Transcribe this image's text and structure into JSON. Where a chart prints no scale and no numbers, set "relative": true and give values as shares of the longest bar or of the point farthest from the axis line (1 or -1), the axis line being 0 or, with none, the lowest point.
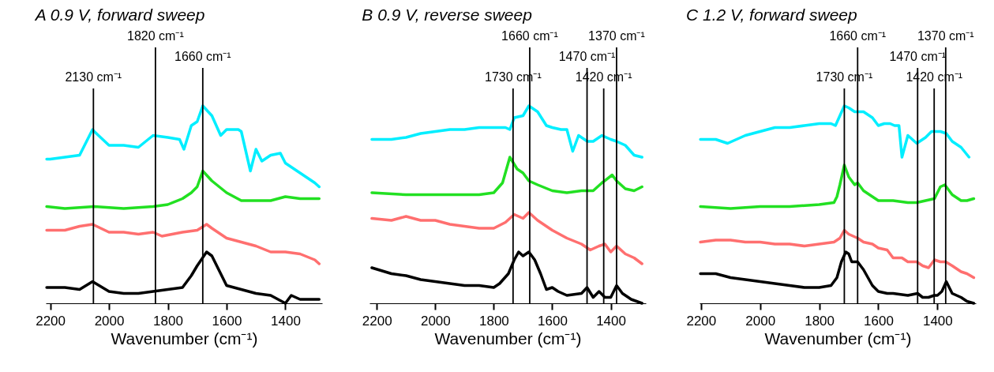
{
  "chart_data": [
    {
      "type": "line",
      "title": "A 0.9 V, forward sweep",
      "xlabel": "Wavenumber (cm⁻¹)",
      "relative": true,
      "xlim": [
        2215,
        1275
      ],
      "xticks": [
        2200,
        2000,
        1800,
        1600,
        1400
      ],
      "ref_lines": [
        {
          "axis": "x",
          "value": 2053,
          "label": "2130 cm⁻¹",
          "color": "#000000"
        },
        {
          "axis": "x",
          "value": 1842,
          "label": "1820 cm⁻¹",
          "color": "#000000"
        },
        {
          "axis": "x",
          "value": 1681,
          "label": "1660 cm⁻¹",
          "color": "#000000"
        }
      ],
      "series": [
        {
          "color": "#00eeff",
          "x": [
            2212,
            2200,
            2150,
            2100,
            2056,
            2050,
            2000,
            1950,
            1900,
            1850,
            1800,
            1760,
            1745,
            1720,
            1700,
            1681,
            1650,
            1620,
            1600,
            1580,
            1560,
            1550,
            1519,
            1500,
            1480,
            1450,
            1417,
            1400,
            1350,
            1300,
            1285
          ],
          "values": [
            0.73,
            0.73,
            0.74,
            0.75,
            0.88,
            0.87,
            0.8,
            0.8,
            0.79,
            0.85,
            0.84,
            0.83,
            0.78,
            0.9,
            0.92,
            1.0,
            0.95,
            0.85,
            0.88,
            0.88,
            0.88,
            0.87,
            0.67,
            0.78,
            0.72,
            0.75,
            0.76,
            0.71,
            0.66,
            0.61,
            0.59
          ]
        },
        {
          "color": "#22e022",
          "x": [
            2212,
            2150,
            2050,
            1950,
            1850,
            1800,
            1750,
            1720,
            1700,
            1681,
            1650,
            1600,
            1550,
            1500,
            1450,
            1400,
            1350,
            1285
          ],
          "values": [
            0.49,
            0.48,
            0.49,
            0.48,
            0.49,
            0.5,
            0.53,
            0.56,
            0.59,
            0.67,
            0.62,
            0.56,
            0.52,
            0.52,
            0.52,
            0.54,
            0.53,
            0.53
          ]
        },
        {
          "color": "#ff6f6f",
          "x": [
            2212,
            2150,
            2100,
            2056,
            2000,
            1950,
            1900,
            1850,
            1820,
            1750,
            1700,
            1668,
            1650,
            1600,
            1550,
            1500,
            1450,
            1400,
            1350,
            1300,
            1285
          ],
          "values": [
            0.37,
            0.37,
            0.39,
            0.4,
            0.36,
            0.36,
            0.35,
            0.36,
            0.34,
            0.36,
            0.37,
            0.4,
            0.38,
            0.33,
            0.31,
            0.29,
            0.26,
            0.26,
            0.25,
            0.22,
            0.2
          ]
        },
        {
          "color": "#000000",
          "x": [
            2212,
            2150,
            2100,
            2056,
            2000,
            1950,
            1900,
            1850,
            1800,
            1750,
            1720,
            1700,
            1668,
            1650,
            1620,
            1600,
            1550,
            1500,
            1450,
            1400,
            1380,
            1350,
            1285
          ],
          "values": [
            0.08,
            0.08,
            0.07,
            0.11,
            0.06,
            0.05,
            0.05,
            0.06,
            0.07,
            0.08,
            0.14,
            0.19,
            0.26,
            0.24,
            0.15,
            0.09,
            0.07,
            0.05,
            0.04,
            0.0,
            0.04,
            0.02,
            0.02
          ]
        }
      ]
    },
    {
      "type": "line",
      "title": "B 0.9 V, reverse sweep",
      "xlabel": "Wavenumber (cm⁻¹)",
      "relative": true,
      "xlim": [
        2225,
        1280
      ],
      "xticks": [
        2200,
        2000,
        1800,
        1600,
        1400
      ],
      "ref_lines": [
        {
          "axis": "x",
          "value": 1734,
          "label": "1730 cm⁻¹",
          "color": "#000000"
        },
        {
          "axis": "x",
          "value": 1677,
          "label": "1660 cm⁻¹",
          "color": "#000000"
        },
        {
          "axis": "x",
          "value": 1481,
          "label": "1470 cm⁻¹",
          "color": "#000000"
        },
        {
          "axis": "x",
          "value": 1424,
          "label": "1420 cm⁻¹",
          "color": "#000000"
        },
        {
          "axis": "x",
          "value": 1380,
          "label": "1370 cm⁻¹",
          "color": "#000000"
        }
      ],
      "series": [
        {
          "color": "#00eeff",
          "x": [
            2217,
            2150,
            2100,
            2050,
            2000,
            1950,
            1900,
            1850,
            1800,
            1760,
            1745,
            1730,
            1700,
            1680,
            1650,
            1620,
            1600,
            1570,
            1550,
            1530,
            1510,
            1480,
            1460,
            1430,
            1400,
            1380,
            1350,
            1320,
            1293
          ],
          "values": [
            0.83,
            0.83,
            0.84,
            0.86,
            0.87,
            0.88,
            0.88,
            0.89,
            0.89,
            0.89,
            0.88,
            0.94,
            0.95,
            1.0,
            0.97,
            0.9,
            0.89,
            0.88,
            0.88,
            0.77,
            0.85,
            0.82,
            0.82,
            0.85,
            0.83,
            0.82,
            0.8,
            0.75,
            0.74
          ]
        },
        {
          "color": "#22e022",
          "x": [
            2217,
            2100,
            2000,
            1900,
            1850,
            1800,
            1770,
            1745,
            1720,
            1700,
            1680,
            1650,
            1600,
            1550,
            1500,
            1460,
            1430,
            1395,
            1380,
            1350,
            1320,
            1293
          ],
          "values": [
            0.56,
            0.55,
            0.55,
            0.55,
            0.55,
            0.56,
            0.61,
            0.74,
            0.68,
            0.66,
            0.62,
            0.6,
            0.57,
            0.56,
            0.57,
            0.57,
            0.61,
            0.65,
            0.62,
            0.58,
            0.57,
            0.59
          ]
        },
        {
          "color": "#ff6f6f",
          "x": [
            2217,
            2150,
            2100,
            2050,
            2000,
            1950,
            1900,
            1850,
            1800,
            1760,
            1730,
            1700,
            1680,
            1650,
            1600,
            1550,
            1500,
            1470,
            1440,
            1420,
            1400,
            1380,
            1350,
            1320,
            1293
          ],
          "values": [
            0.43,
            0.42,
            0.44,
            0.42,
            0.42,
            0.4,
            0.39,
            0.38,
            0.38,
            0.41,
            0.45,
            0.43,
            0.46,
            0.42,
            0.37,
            0.33,
            0.3,
            0.27,
            0.29,
            0.3,
            0.26,
            0.29,
            0.25,
            0.23,
            0.2
          ]
        },
        {
          "color": "#000000",
          "x": [
            2217,
            2150,
            2100,
            2050,
            2000,
            1950,
            1900,
            1850,
            1800,
            1780,
            1750,
            1730,
            1715,
            1700,
            1680,
            1660,
            1640,
            1620,
            1600,
            1580,
            1550,
            1500,
            1481,
            1460,
            1440,
            1420,
            1400,
            1380,
            1360,
            1330,
            1293
          ],
          "values": [
            0.18,
            0.15,
            0.14,
            0.12,
            0.11,
            0.1,
            0.09,
            0.09,
            0.08,
            0.1,
            0.15,
            0.22,
            0.26,
            0.24,
            0.26,
            0.22,
            0.15,
            0.07,
            0.08,
            0.06,
            0.04,
            0.05,
            0.08,
            0.03,
            0.06,
            0.03,
            0.03,
            0.09,
            0.05,
            0.02,
            0.0
          ]
        }
      ]
    },
    {
      "type": "line",
      "title": "C 1.2 V, forward sweep",
      "xlabel": "Wavenumber (cm⁻¹)",
      "relative": true,
      "xlim": [
        2205,
        1270
      ],
      "xticks": [
        2200,
        2000,
        1800,
        1600,
        1400
      ],
      "ref_lines": [
        {
          "axis": "x",
          "value": 1715,
          "label": "1730 cm⁻¹",
          "color": "#000000"
        },
        {
          "axis": "x",
          "value": 1670,
          "label": "1660 cm⁻¹",
          "color": "#000000"
        },
        {
          "axis": "x",
          "value": 1467,
          "label": "1470 cm⁻¹",
          "color": "#000000"
        },
        {
          "axis": "x",
          "value": 1411,
          "label": "1420 cm⁻¹",
          "color": "#000000"
        },
        {
          "axis": "x",
          "value": 1372,
          "label": "1370 cm⁻¹",
          "color": "#000000"
        }
      ],
      "series": [
        {
          "color": "#00eeff",
          "x": [
            2202,
            2150,
            2110,
            2050,
            2000,
            1950,
            1900,
            1850,
            1800,
            1760,
            1745,
            1715,
            1700,
            1680,
            1650,
            1620,
            1600,
            1580,
            1560,
            1545,
            1530,
            1520,
            1500,
            1470,
            1440,
            1420,
            1390,
            1370,
            1350,
            1320,
            1293
          ],
          "values": [
            0.83,
            0.83,
            0.81,
            0.85,
            0.87,
            0.89,
            0.89,
            0.9,
            0.91,
            0.91,
            0.9,
            1.0,
            0.99,
            0.97,
            0.97,
            0.94,
            0.9,
            0.91,
            0.91,
            0.9,
            0.9,
            0.74,
            0.85,
            0.81,
            0.84,
            0.87,
            0.87,
            0.86,
            0.82,
            0.79,
            0.74
          ]
        },
        {
          "color": "#22e022",
          "x": [
            2202,
            2100,
            2000,
            1900,
            1800,
            1750,
            1740,
            1730,
            1715,
            1700,
            1680,
            1670,
            1650,
            1620,
            1600,
            1550,
            1500,
            1470,
            1440,
            1410,
            1390,
            1375,
            1350,
            1320,
            1300,
            1277
          ],
          "values": [
            0.49,
            0.48,
            0.49,
            0.49,
            0.5,
            0.51,
            0.54,
            0.6,
            0.7,
            0.64,
            0.6,
            0.61,
            0.57,
            0.54,
            0.52,
            0.52,
            0.51,
            0.51,
            0.52,
            0.53,
            0.59,
            0.6,
            0.55,
            0.52,
            0.52,
            0.53
          ]
        },
        {
          "color": "#ff6f6f",
          "x": [
            2202,
            2150,
            2100,
            2050,
            2000,
            1950,
            1900,
            1850,
            1800,
            1750,
            1730,
            1715,
            1700,
            1670,
            1650,
            1620,
            1600,
            1570,
            1550,
            1520,
            1500,
            1470,
            1450,
            1430,
            1410,
            1390,
            1372,
            1350,
            1320,
            1300,
            1277
          ],
          "values": [
            0.31,
            0.32,
            0.32,
            0.31,
            0.31,
            0.3,
            0.3,
            0.29,
            0.3,
            0.31,
            0.33,
            0.37,
            0.35,
            0.33,
            0.31,
            0.3,
            0.28,
            0.27,
            0.23,
            0.23,
            0.21,
            0.21,
            0.19,
            0.18,
            0.22,
            0.21,
            0.21,
            0.19,
            0.16,
            0.15,
            0.13
          ]
        },
        {
          "color": "#000000",
          "x": [
            2202,
            2150,
            2100,
            2050,
            2000,
            1950,
            1900,
            1850,
            1800,
            1760,
            1740,
            1725,
            1710,
            1700,
            1690,
            1670,
            1650,
            1620,
            1600,
            1570,
            1550,
            1500,
            1467,
            1450,
            1430,
            1411,
            1400,
            1385,
            1370,
            1350,
            1320,
            1300,
            1277
          ],
          "values": [
            0.15,
            0.15,
            0.13,
            0.12,
            0.11,
            0.1,
            0.09,
            0.08,
            0.08,
            0.09,
            0.13,
            0.21,
            0.26,
            0.25,
            0.21,
            0.21,
            0.17,
            0.09,
            0.06,
            0.05,
            0.05,
            0.04,
            0.05,
            0.03,
            0.03,
            0.04,
            0.04,
            0.06,
            0.11,
            0.05,
            0.03,
            0.01,
            0.0
          ]
        }
      ]
    }
  ]
}
